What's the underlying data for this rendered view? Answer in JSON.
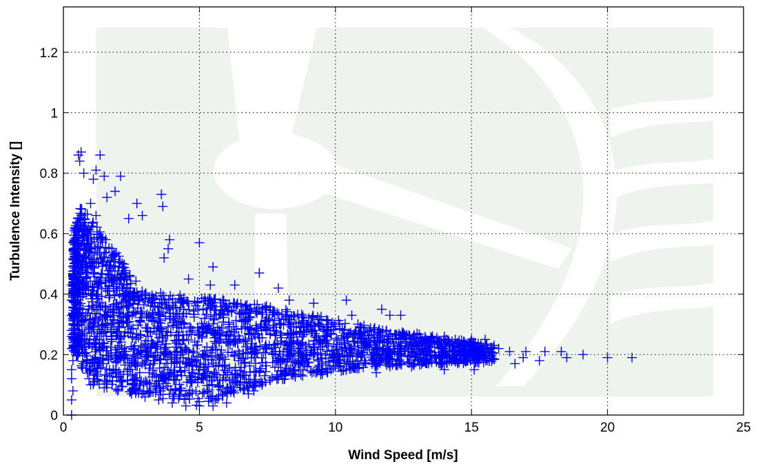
{
  "chart_data": {
    "type": "scatter",
    "xlabel": "Wind Speed [m/s]",
    "ylabel": "Turbulence Intensity []",
    "xlim": [
      0,
      25
    ],
    "ylim": [
      0,
      1.35
    ],
    "xticks": [
      0,
      5,
      10,
      15,
      20,
      25
    ],
    "yticks": [
      0,
      0.2,
      0.4,
      0.6,
      0.8,
      1,
      1.2
    ],
    "grid": true,
    "marker": "+",
    "colors": {
      "marker": "#0000ff",
      "watermark": "#e8efe8"
    },
    "series": [
      {
        "description": "dense cloud of measurements: lower envelope ~0.04 around 5 m/s, upper envelope ~0.7 near 0.5 m/s, converging to ~0.2 above 12 m/s",
        "points": [
          [
            0.3,
            0.0
          ],
          [
            0.3,
            0.05
          ],
          [
            0.35,
            0.08
          ],
          [
            0.3,
            0.12
          ],
          [
            0.3,
            0.15
          ],
          [
            0.35,
            0.18
          ],
          [
            0.3,
            0.22
          ],
          [
            0.3,
            0.26
          ],
          [
            0.3,
            0.28
          ],
          [
            0.3,
            0.33
          ],
          [
            0.3,
            0.38
          ],
          [
            0.3,
            0.4
          ],
          [
            0.3,
            0.43
          ],
          [
            0.55,
            0.86
          ],
          [
            0.65,
            0.87
          ],
          [
            0.6,
            0.84
          ],
          [
            1.35,
            0.86
          ],
          [
            1.2,
            0.81
          ],
          [
            0.75,
            0.8
          ],
          [
            1.1,
            0.78
          ],
          [
            1.5,
            0.79
          ],
          [
            2.1,
            0.79
          ],
          [
            1.9,
            0.74
          ],
          [
            1.6,
            0.72
          ],
          [
            2.7,
            0.7
          ],
          [
            3.6,
            0.73
          ],
          [
            3.65,
            0.69
          ],
          [
            2.9,
            0.66
          ],
          [
            2.4,
            0.65
          ],
          [
            1.2,
            0.66
          ],
          [
            1.0,
            0.7
          ],
          [
            3.9,
            0.58
          ],
          [
            3.85,
            0.55
          ],
          [
            5.0,
            0.57
          ],
          [
            3.7,
            0.52
          ],
          [
            5.5,
            0.49
          ],
          [
            7.2,
            0.47
          ],
          [
            4.6,
            0.45
          ],
          [
            5.4,
            0.43
          ],
          [
            6.3,
            0.43
          ],
          [
            7.9,
            0.42
          ],
          [
            10.4,
            0.38
          ],
          [
            8.3,
            0.38
          ],
          [
            9.2,
            0.37
          ],
          [
            11.7,
            0.35
          ],
          [
            10.6,
            0.33
          ],
          [
            12.0,
            0.33
          ],
          [
            12.4,
            0.33
          ],
          [
            13.0,
            0.27
          ],
          [
            14.0,
            0.26
          ],
          [
            14.4,
            0.25
          ],
          [
            15.0,
            0.25
          ],
          [
            15.5,
            0.25
          ],
          [
            15.1,
            0.22
          ],
          [
            16.0,
            0.22
          ],
          [
            16.4,
            0.21
          ],
          [
            17.0,
            0.21
          ],
          [
            17.7,
            0.21
          ],
          [
            18.3,
            0.21
          ],
          [
            19.1,
            0.2
          ],
          [
            18.5,
            0.19
          ],
          [
            20.0,
            0.19
          ],
          [
            20.9,
            0.19
          ],
          [
            16.9,
            0.19
          ],
          [
            17.5,
            0.18
          ],
          [
            16.6,
            0.17
          ],
          [
            15.1,
            0.15
          ],
          [
            14.0,
            0.15
          ],
          [
            13.9,
            0.17
          ],
          [
            12.8,
            0.16
          ],
          [
            12.0,
            0.16
          ],
          [
            11.5,
            0.14
          ],
          [
            10.0,
            0.16
          ],
          [
            9.5,
            0.15
          ],
          [
            8.5,
            0.15
          ],
          [
            7.9,
            0.12
          ],
          [
            7.3,
            0.1
          ],
          [
            7.0,
            0.08
          ],
          [
            6.8,
            0.07
          ],
          [
            6.0,
            0.04
          ],
          [
            5.5,
            0.03
          ],
          [
            5.0,
            0.03
          ],
          [
            4.5,
            0.03
          ],
          [
            4.0,
            0.04
          ],
          [
            3.5,
            0.05
          ],
          [
            3.0,
            0.06
          ],
          [
            2.5,
            0.07
          ],
          [
            2.0,
            0.08
          ],
          [
            1.5,
            0.09
          ],
          [
            1.0,
            0.1
          ]
        ]
      }
    ]
  }
}
